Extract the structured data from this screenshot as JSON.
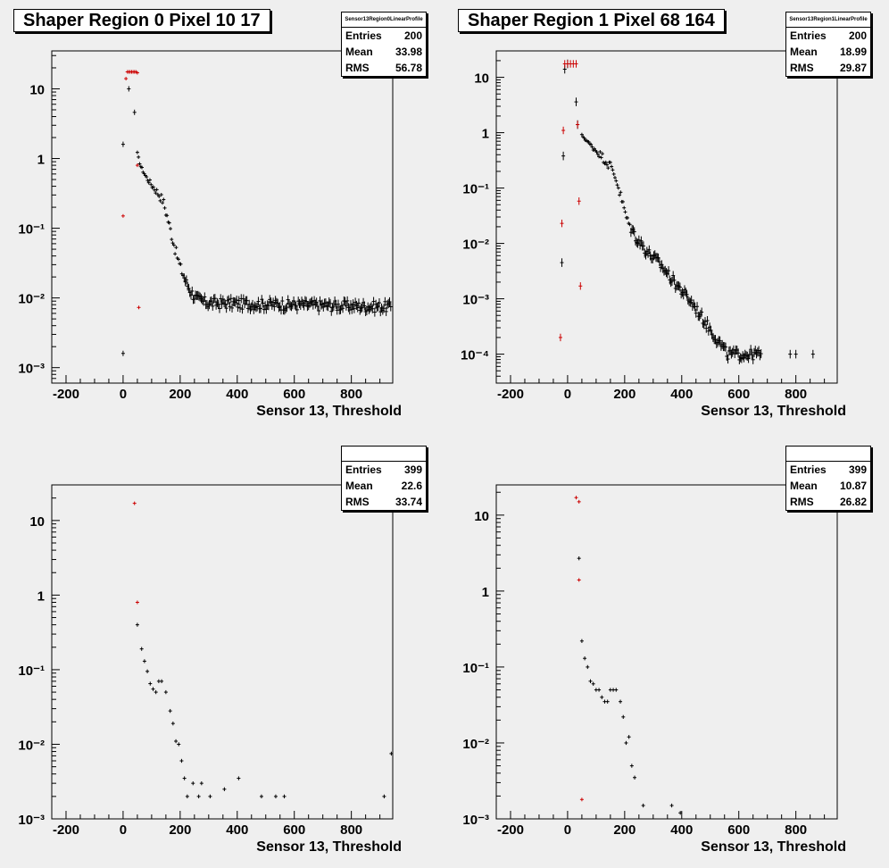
{
  "panels": [
    {
      "title": "Shaper Region 0 Pixel 10 17",
      "stats_name": "Sensor13Region0LinearProfile",
      "stats": [
        {
          "label": "Entries",
          "value": "200"
        },
        {
          "label": "Mean",
          "value": "33.98"
        },
        {
          "label": "RMS",
          "value": "56.78"
        }
      ]
    },
    {
      "title": "Shaper Region 1 Pixel 68 164",
      "stats_name": "Sensor13Region1LinearProfile",
      "stats": [
        {
          "label": "Entries",
          "value": "200"
        },
        {
          "label": "Mean",
          "value": "18.99"
        },
        {
          "label": "RMS",
          "value": "29.87"
        }
      ]
    },
    {
      "title": "",
      "stats_name": "",
      "stats": [
        {
          "label": "Entries",
          "value": "399"
        },
        {
          "label": "Mean",
          "value": "22.6"
        },
        {
          "label": "RMS",
          "value": "33.74"
        }
      ]
    },
    {
      "title": "",
      "stats_name": "",
      "stats": [
        {
          "label": "Entries",
          "value": "399"
        },
        {
          "label": "Mean",
          "value": "10.87"
        },
        {
          "label": "RMS",
          "value": "26.82"
        }
      ]
    }
  ],
  "chart_data": [
    {
      "type": "scatter",
      "title": "Shaper Region 0 Pixel 10 17",
      "xlabel": "Sensor 13, Threshold",
      "ylabel": "",
      "xlim": [
        -250,
        945
      ],
      "ylim": [
        0.0006,
        35
      ],
      "yscale": "log",
      "xticks": [
        -200,
        0,
        200,
        400,
        600,
        800
      ],
      "yticks": [
        {
          "v": 0.001,
          "label": "10⁻³"
        },
        {
          "v": 0.01,
          "label": "10⁻²"
        },
        {
          "v": 0.1,
          "label": "10⁻¹"
        },
        {
          "v": 1,
          "label": "1"
        },
        {
          "v": 10,
          "label": "10"
        }
      ],
      "grid": false,
      "series": [
        {
          "color": "#000000",
          "style": "curve",
          "eh": 0.12,
          "knots": [
            [
              50,
              1.2
            ],
            [
              60,
              0.8
            ],
            [
              80,
              0.55
            ],
            [
              100,
              0.42
            ],
            [
              120,
              0.33
            ],
            [
              140,
              0.25
            ],
            [
              160,
              0.12
            ],
            [
              180,
              0.055
            ],
            [
              200,
              0.028
            ],
            [
              220,
              0.017
            ],
            [
              240,
              0.012
            ],
            [
              260,
              0.0095
            ],
            [
              300,
              0.0085
            ],
            [
              940,
              0.0075
            ]
          ],
          "step": 4,
          "noise": 0.18
        },
        {
          "color": "#000000",
          "style": "points",
          "eh": 0.25,
          "points": [
            [
              0,
              1.6
            ],
            [
              0,
              0.0016
            ],
            [
              20,
              10
            ],
            [
              40,
              4.6
            ]
          ]
        },
        {
          "color": "#cc0000",
          "style": "points",
          "eh": 0.05,
          "points": [
            [
              0,
              0.15
            ],
            [
              10,
              14
            ],
            [
              15,
              17.5
            ],
            [
              20,
              17.5
            ],
            [
              25,
              17.5
            ],
            [
              30,
              17.5
            ],
            [
              35,
              17.5
            ],
            [
              40,
              17.5
            ],
            [
              45,
              17.5
            ],
            [
              50,
              17
            ],
            [
              50,
              0.8
            ],
            [
              55,
              0.0073
            ]
          ]
        }
      ]
    },
    {
      "type": "scatter",
      "title": "Shaper Region 1 Pixel 68 164",
      "xlabel": "Sensor 13, Threshold",
      "ylabel": "",
      "xlim": [
        -250,
        945
      ],
      "ylim": [
        3e-05,
        30
      ],
      "yscale": "log",
      "xticks": [
        -200,
        0,
        200,
        400,
        600,
        800
      ],
      "yticks": [
        {
          "v": 0.0001,
          "label": "10⁻⁴"
        },
        {
          "v": 0.001,
          "label": "10⁻³"
        },
        {
          "v": 0.01,
          "label": "10⁻²"
        },
        {
          "v": 0.1,
          "label": "10⁻¹"
        },
        {
          "v": 1,
          "label": "1"
        },
        {
          "v": 10,
          "label": "10"
        }
      ],
      "grid": false,
      "series": [
        {
          "color": "#000000",
          "style": "curve",
          "eh": 0.12,
          "knots": [
            [
              50,
              0.9
            ],
            [
              80,
              0.6
            ],
            [
              120,
              0.38
            ],
            [
              150,
              0.25
            ],
            [
              170,
              0.15
            ],
            [
              190,
              0.06
            ],
            [
              210,
              0.025
            ],
            [
              240,
              0.013
            ],
            [
              280,
              0.007
            ],
            [
              320,
              0.0045
            ],
            [
              360,
              0.0025
            ],
            [
              400,
              0.0014
            ],
            [
              440,
              0.0008
            ],
            [
              480,
              0.0004
            ],
            [
              520,
              0.0002
            ],
            [
              560,
              0.0001
            ],
            [
              600,
              0.0001
            ],
            [
              640,
              0.0001
            ],
            [
              680,
              0.0001
            ]
          ],
          "step": 4,
          "noise": 0.22
        },
        {
          "color": "#000000",
          "style": "points",
          "eh": 0.4,
          "points": [
            [
              780,
              0.0001
            ],
            [
              800,
              0.0001
            ],
            [
              860,
              0.0001
            ],
            [
              -20,
              0.0045
            ],
            [
              -15,
              0.38
            ],
            [
              -10,
              14
            ],
            [
              0,
              17.5
            ],
            [
              30,
              3.6
            ],
            [
              35,
              1.4
            ]
          ]
        },
        {
          "color": "#cc0000",
          "style": "points",
          "eh": 0.35,
          "points": [
            [
              -25,
              0.0002
            ],
            [
              -20,
              0.023
            ],
            [
              -15,
              1.1
            ],
            [
              -10,
              17.5
            ],
            [
              0,
              17.5
            ],
            [
              10,
              17.5
            ],
            [
              20,
              17.5
            ],
            [
              30,
              17.5
            ],
            [
              35,
              1.4
            ],
            [
              40,
              0.058
            ],
            [
              45,
              0.0017
            ]
          ]
        }
      ]
    },
    {
      "type": "scatter",
      "title": "",
      "xlabel": "Sensor 13, Threshold",
      "ylabel": "",
      "xlim": [
        -250,
        945
      ],
      "ylim": [
        0.001,
        30
      ],
      "yscale": "log",
      "xticks": [
        -200,
        0,
        200,
        400,
        600,
        800
      ],
      "yticks": [
        {
          "v": 0.001,
          "label": "10⁻³"
        },
        {
          "v": 0.01,
          "label": "10⁻²"
        },
        {
          "v": 0.1,
          "label": "10⁻¹"
        },
        {
          "v": 1,
          "label": "1"
        },
        {
          "v": 10,
          "label": "10"
        }
      ],
      "grid": false,
      "series": [
        {
          "color": "#000000",
          "style": "points",
          "eh": 0.18,
          "points": [
            [
              50,
              0.4
            ],
            [
              65,
              0.19
            ],
            [
              75,
              0.13
            ],
            [
              85,
              0.095
            ],
            [
              95,
              0.065
            ],
            [
              105,
              0.055
            ],
            [
              115,
              0.05
            ],
            [
              125,
              0.07
            ],
            [
              135,
              0.07
            ],
            [
              150,
              0.05
            ],
            [
              165,
              0.028
            ],
            [
              175,
              0.019
            ],
            [
              185,
              0.011
            ],
            [
              195,
              0.01
            ],
            [
              205,
              0.006
            ],
            [
              215,
              0.0035
            ],
            [
              225,
              0.002
            ],
            [
              245,
              0.003
            ],
            [
              265,
              0.002
            ],
            [
              275,
              0.003
            ],
            [
              305,
              0.002
            ],
            [
              355,
              0.0025
            ],
            [
              405,
              0.0035
            ],
            [
              485,
              0.002
            ],
            [
              535,
              0.002
            ],
            [
              565,
              0.002
            ],
            [
              915,
              0.002
            ],
            [
              940,
              0.0075
            ]
          ]
        },
        {
          "color": "#cc0000",
          "style": "points",
          "eh": 0.04,
          "points": [
            [
              40,
              17
            ],
            [
              50,
              0.8
            ]
          ]
        }
      ]
    },
    {
      "type": "scatter",
      "title": "",
      "xlabel": "Sensor 13, Threshold",
      "ylabel": "",
      "xlim": [
        -250,
        945
      ],
      "ylim": [
        0.001,
        25
      ],
      "yscale": "log",
      "xticks": [
        -200,
        0,
        200,
        400,
        600,
        800
      ],
      "yticks": [
        {
          "v": 0.001,
          "label": "10⁻³"
        },
        {
          "v": 0.01,
          "label": "10⁻²"
        },
        {
          "v": 0.1,
          "label": "10⁻¹"
        },
        {
          "v": 1,
          "label": "1"
        },
        {
          "v": 10,
          "label": "10"
        }
      ],
      "grid": false,
      "series": [
        {
          "color": "#000000",
          "style": "points",
          "eh": 0.18,
          "points": [
            [
              40,
              2.7
            ],
            [
              50,
              0.22
            ],
            [
              60,
              0.13
            ],
            [
              70,
              0.1
            ],
            [
              80,
              0.065
            ],
            [
              90,
              0.06
            ],
            [
              100,
              0.05
            ],
            [
              110,
              0.05
            ],
            [
              120,
              0.04
            ],
            [
              130,
              0.035
            ],
            [
              140,
              0.035
            ],
            [
              150,
              0.05
            ],
            [
              160,
              0.05
            ],
            [
              170,
              0.05
            ],
            [
              185,
              0.035
            ],
            [
              195,
              0.022
            ],
            [
              205,
              0.01
            ],
            [
              215,
              0.012
            ],
            [
              225,
              0.005
            ],
            [
              235,
              0.0035
            ],
            [
              265,
              0.0015
            ],
            [
              365,
              0.0015
            ],
            [
              395,
              0.0012
            ]
          ]
        },
        {
          "color": "#cc0000",
          "style": "points",
          "eh": 0.15,
          "points": [
            [
              30,
              17
            ],
            [
              40,
              15
            ],
            [
              40,
              1.4
            ],
            [
              50,
              0.0018
            ]
          ]
        }
      ]
    }
  ]
}
